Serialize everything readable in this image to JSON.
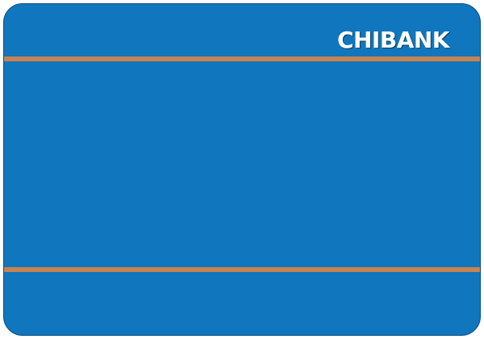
{
  "card": {
    "brand_name": "CHIBANK",
    "colors": {
      "background": "#1076bd",
      "stripe": "#c9834f",
      "text": "#ffffff"
    }
  }
}
